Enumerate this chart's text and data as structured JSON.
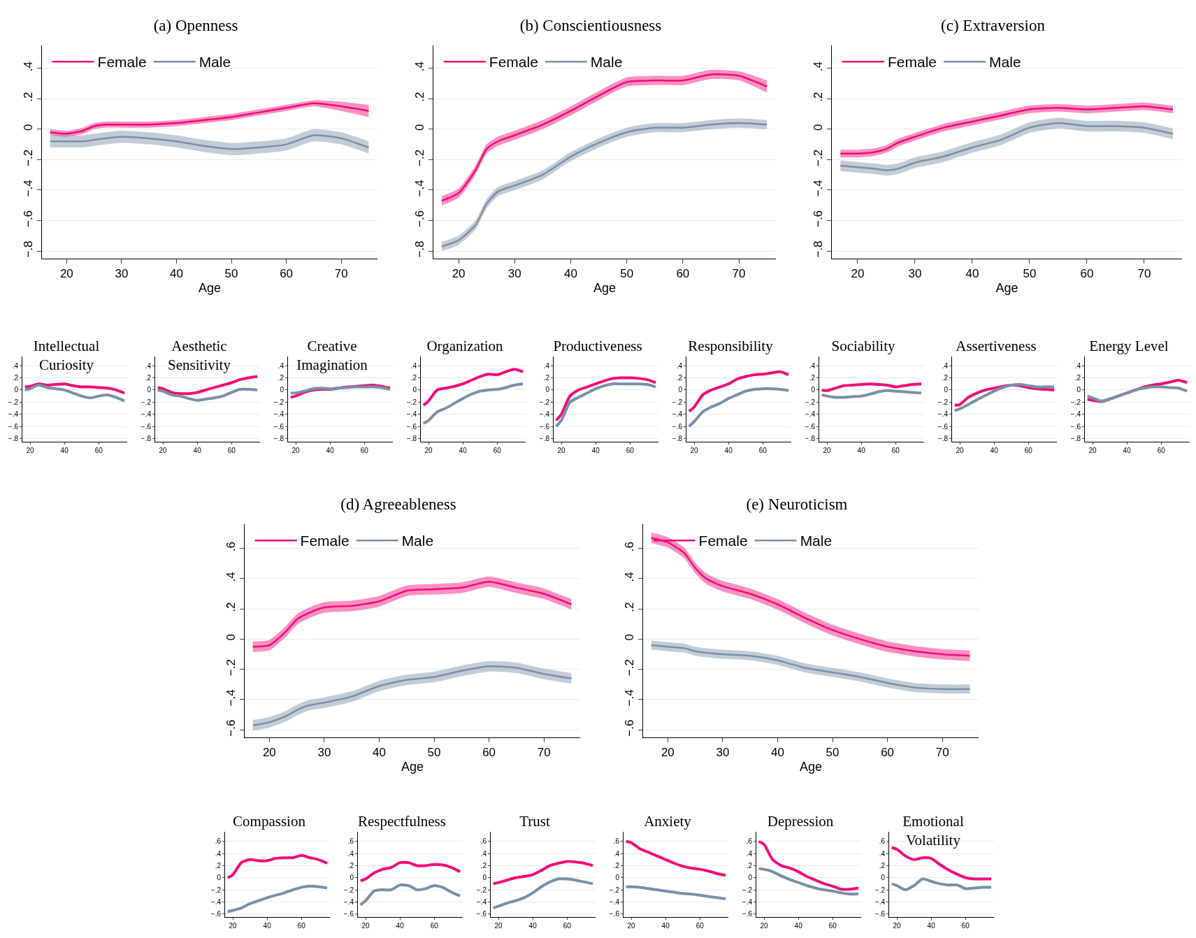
{
  "chart_data": [
    {
      "type": "line",
      "title": "(a) Openness",
      "xlabel": "Age",
      "x": [
        17,
        20,
        23,
        25,
        27,
        30,
        35,
        40,
        45,
        50,
        55,
        60,
        65,
        70,
        75
      ],
      "xlim": [
        15.5,
        76.6
      ],
      "xticks": [
        20,
        30,
        40,
        50,
        60,
        70
      ],
      "ylim": [
        -0.85,
        0.55
      ],
      "yticks": [
        {
          "value": -0.8,
          "label": "−.8"
        },
        {
          "value": -0.6,
          "label": "−.6"
        },
        {
          "value": -0.4,
          "label": "−.4"
        },
        {
          "value": -0.2,
          "label": "−.2"
        },
        {
          "value": 0,
          "label": "0"
        },
        {
          "value": 0.2,
          "label": ".2"
        },
        {
          "value": 0.4,
          "label": ".4"
        }
      ],
      "grid": "y",
      "legend": "top",
      "series": [
        {
          "name": "Female",
          "color": "#f50a78",
          "values": [
            -0.02,
            -0.03,
            -0.01,
            0.02,
            0.03,
            0.03,
            0.03,
            0.04,
            0.06,
            0.08,
            0.11,
            0.14,
            0.17,
            0.15,
            0.12
          ],
          "lower": [
            -0.04,
            -0.05,
            -0.03,
            0.0,
            0.01,
            0.01,
            0.01,
            0.02,
            0.04,
            0.06,
            0.09,
            0.12,
            0.15,
            0.12,
            0.08
          ],
          "upper": [
            0.0,
            -0.01,
            0.01,
            0.04,
            0.05,
            0.05,
            0.05,
            0.06,
            0.08,
            0.1,
            0.13,
            0.16,
            0.19,
            0.18,
            0.16
          ]
        },
        {
          "name": "Male",
          "color": "#7890a8",
          "values": [
            -0.08,
            -0.08,
            -0.08,
            -0.07,
            -0.06,
            -0.05,
            -0.06,
            -0.08,
            -0.11,
            -0.13,
            -0.12,
            -0.1,
            -0.04,
            -0.06,
            -0.12
          ],
          "lower": [
            -0.12,
            -0.12,
            -0.12,
            -0.11,
            -0.1,
            -0.09,
            -0.1,
            -0.12,
            -0.15,
            -0.17,
            -0.16,
            -0.14,
            -0.08,
            -0.1,
            -0.16
          ],
          "upper": [
            -0.04,
            -0.04,
            -0.04,
            -0.03,
            -0.02,
            -0.01,
            -0.02,
            -0.04,
            -0.07,
            -0.09,
            -0.08,
            -0.06,
            0.0,
            -0.02,
            -0.08
          ]
        }
      ]
    },
    {
      "type": "line",
      "title": "(b) Conscientiousness",
      "xlabel": "Age",
      "x": [
        17,
        20,
        23,
        25,
        27,
        30,
        35,
        40,
        45,
        50,
        55,
        60,
        65,
        70,
        75
      ],
      "xlim": [
        15.5,
        76.6
      ],
      "xticks": [
        20,
        30,
        40,
        50,
        60,
        70
      ],
      "ylim": [
        -0.85,
        0.55
      ],
      "yticks": [
        {
          "value": -0.8,
          "label": "−.8"
        },
        {
          "value": -0.6,
          "label": "−.6"
        },
        {
          "value": -0.4,
          "label": "−.4"
        },
        {
          "value": -0.2,
          "label": "−.2"
        },
        {
          "value": 0,
          "label": "0"
        },
        {
          "value": 0.2,
          "label": ".2"
        },
        {
          "value": 0.4,
          "label": ".4"
        }
      ],
      "grid": "y",
      "legend": "top",
      "series": [
        {
          "name": "Female",
          "color": "#f50a78",
          "values": [
            -0.47,
            -0.42,
            -0.27,
            -0.13,
            -0.08,
            -0.04,
            0.03,
            0.12,
            0.22,
            0.31,
            0.32,
            0.32,
            0.36,
            0.35,
            0.28
          ],
          "lower": [
            -0.5,
            -0.45,
            -0.3,
            -0.16,
            -0.11,
            -0.07,
            0.0,
            0.09,
            0.19,
            0.28,
            0.29,
            0.29,
            0.33,
            0.32,
            0.24
          ],
          "upper": [
            -0.44,
            -0.39,
            -0.24,
            -0.1,
            -0.05,
            -0.01,
            0.06,
            0.15,
            0.25,
            0.34,
            0.35,
            0.35,
            0.39,
            0.38,
            0.32
          ]
        },
        {
          "name": "Male",
          "color": "#7890a8",
          "values": [
            -0.77,
            -0.73,
            -0.63,
            -0.49,
            -0.41,
            -0.37,
            -0.3,
            -0.18,
            -0.09,
            -0.02,
            0.01,
            0.01,
            0.03,
            0.04,
            0.03
          ],
          "lower": [
            -0.8,
            -0.76,
            -0.66,
            -0.52,
            -0.44,
            -0.4,
            -0.33,
            -0.21,
            -0.12,
            -0.05,
            -0.02,
            -0.02,
            0.0,
            0.01,
            0.0
          ],
          "upper": [
            -0.74,
            -0.7,
            -0.6,
            -0.46,
            -0.38,
            -0.34,
            -0.27,
            -0.15,
            -0.06,
            0.01,
            0.04,
            0.04,
            0.06,
            0.07,
            0.06
          ]
        }
      ]
    },
    {
      "type": "line",
      "title": "(c) Extraversion",
      "xlabel": "Age",
      "x": [
        17,
        20,
        23,
        25,
        27,
        30,
        35,
        40,
        45,
        50,
        55,
        60,
        65,
        70,
        75
      ],
      "xlim": [
        15.5,
        76.6
      ],
      "xticks": [
        20,
        30,
        40,
        50,
        60,
        70
      ],
      "ylim": [
        -0.85,
        0.55
      ],
      "yticks": [
        {
          "value": -0.8,
          "label": "−.8"
        },
        {
          "value": -0.6,
          "label": "−.6"
        },
        {
          "value": -0.4,
          "label": "−.4"
        },
        {
          "value": -0.2,
          "label": "−.2"
        },
        {
          "value": 0,
          "label": "0"
        },
        {
          "value": 0.2,
          "label": ".2"
        },
        {
          "value": 0.4,
          "label": ".4"
        }
      ],
      "grid": "y",
      "legend": "top",
      "series": [
        {
          "name": "Female",
          "color": "#f50a78",
          "values": [
            -0.16,
            -0.16,
            -0.15,
            -0.13,
            -0.09,
            -0.05,
            0.01,
            0.05,
            0.09,
            0.13,
            0.14,
            0.13,
            0.14,
            0.15,
            0.13
          ],
          "lower": [
            -0.185,
            -0.185,
            -0.175,
            -0.155,
            -0.115,
            -0.075,
            -0.015,
            0.025,
            0.065,
            0.105,
            0.115,
            0.105,
            0.115,
            0.125,
            0.105
          ],
          "upper": [
            -0.135,
            -0.135,
            -0.125,
            -0.105,
            -0.065,
            -0.025,
            0.035,
            0.075,
            0.115,
            0.155,
            0.165,
            0.155,
            0.165,
            0.175,
            0.155
          ]
        },
        {
          "name": "Male",
          "color": "#7890a8",
          "values": [
            -0.24,
            -0.25,
            -0.26,
            -0.27,
            -0.26,
            -0.22,
            -0.18,
            -0.12,
            -0.07,
            0.01,
            0.04,
            0.02,
            0.02,
            0.01,
            -0.03
          ],
          "lower": [
            -0.275,
            -0.285,
            -0.295,
            -0.305,
            -0.295,
            -0.255,
            -0.215,
            -0.155,
            -0.105,
            -0.025,
            0.005,
            -0.015,
            -0.015,
            -0.025,
            -0.065
          ],
          "upper": [
            -0.205,
            -0.215,
            -0.225,
            -0.235,
            -0.225,
            -0.185,
            -0.145,
            -0.085,
            -0.035,
            0.045,
            0.075,
            0.055,
            0.055,
            0.045,
            0.005
          ]
        }
      ]
    },
    {
      "type": "line",
      "title": "Intellectual\nCuriosity",
      "x": [
        17,
        20,
        25,
        30,
        35,
        40,
        45,
        50,
        55,
        60,
        65,
        70,
        75
      ],
      "xlim": [
        15.5,
        76.6
      ],
      "xticks": [
        20,
        40,
        60
      ],
      "ylim": [
        -0.85,
        0.55
      ],
      "yticks": [
        {
          "value": -0.8,
          "label": "−.8"
        },
        {
          "value": -0.6,
          "label": "−.6"
        },
        {
          "value": -0.4,
          "label": "−.4"
        },
        {
          "value": -0.2,
          "label": "−.2"
        },
        {
          "value": 0,
          "label": "0"
        },
        {
          "value": 0.2,
          "label": ".2"
        },
        {
          "value": 0.4,
          "label": ".4"
        }
      ],
      "grid": "y",
      "series": [
        {
          "color": "#f50a78",
          "values": [
            0.05,
            0.06,
            0.1,
            0.08,
            0.09,
            0.1,
            0.07,
            0.05,
            0.05,
            0.04,
            0.03,
            0.0,
            -0.05
          ]
        },
        {
          "color": "#7890a8",
          "values": [
            0.0,
            0.02,
            0.08,
            0.04,
            0.02,
            0.0,
            -0.05,
            -0.1,
            -0.13,
            -0.1,
            -0.08,
            -0.12,
            -0.18
          ]
        }
      ]
    },
    {
      "type": "line",
      "title": "Aesthetic\nSensitivity",
      "x": [
        17,
        20,
        25,
        30,
        35,
        40,
        45,
        50,
        55,
        60,
        65,
        70,
        75
      ],
      "xlim": [
        15.5,
        76.6
      ],
      "xticks": [
        20,
        40,
        60
      ],
      "ylim": [
        -0.85,
        0.55
      ],
      "yticks": [
        {
          "value": -0.8,
          "label": "−.8"
        },
        {
          "value": -0.6,
          "label": "−.6"
        },
        {
          "value": -0.4,
          "label": "−.4"
        },
        {
          "value": -0.2,
          "label": "−.2"
        },
        {
          "value": 0,
          "label": "0"
        },
        {
          "value": 0.2,
          "label": ".2"
        },
        {
          "value": 0.4,
          "label": ".4"
        }
      ],
      "grid": "y",
      "series": [
        {
          "color": "#f50a78",
          "values": [
            0.04,
            0.02,
            -0.04,
            -0.06,
            -0.06,
            -0.04,
            0.0,
            0.04,
            0.08,
            0.12,
            0.17,
            0.2,
            0.22
          ]
        },
        {
          "color": "#7890a8",
          "values": [
            0.0,
            -0.02,
            -0.08,
            -0.1,
            -0.14,
            -0.17,
            -0.15,
            -0.13,
            -0.1,
            -0.04,
            0.01,
            0.01,
            0.0
          ]
        }
      ]
    },
    {
      "type": "line",
      "title": "Creative\nImagination",
      "x": [
        17,
        20,
        25,
        30,
        35,
        40,
        45,
        50,
        55,
        60,
        65,
        70,
        75
      ],
      "xlim": [
        15.5,
        76.6
      ],
      "xticks": [
        20,
        40,
        60
      ],
      "ylim": [
        -0.85,
        0.55
      ],
      "yticks": [
        {
          "value": -0.8,
          "label": "−.8"
        },
        {
          "value": -0.6,
          "label": "−.6"
        },
        {
          "value": -0.4,
          "label": "−.4"
        },
        {
          "value": -0.2,
          "label": "−.2"
        },
        {
          "value": 0,
          "label": "0"
        },
        {
          "value": 0.2,
          "label": ".2"
        },
        {
          "value": 0.4,
          "label": ".4"
        }
      ],
      "grid": "y",
      "series": [
        {
          "color": "#f50a78",
          "values": [
            -0.12,
            -0.1,
            -0.04,
            0.0,
            0.01,
            0.01,
            0.03,
            0.05,
            0.06,
            0.07,
            0.08,
            0.06,
            0.03
          ]
        },
        {
          "color": "#7890a8",
          "values": [
            -0.05,
            -0.05,
            -0.02,
            0.02,
            0.03,
            0.02,
            0.03,
            0.04,
            0.05,
            0.05,
            0.05,
            0.04,
            0.01
          ]
        }
      ]
    },
    {
      "type": "line",
      "title": "Organization",
      "x": [
        17,
        20,
        25,
        30,
        35,
        40,
        45,
        50,
        55,
        60,
        65,
        70,
        75
      ],
      "xlim": [
        15.5,
        76.6
      ],
      "xticks": [
        20,
        40,
        60
      ],
      "ylim": [
        -0.85,
        0.55
      ],
      "yticks": [
        {
          "value": -0.8,
          "label": "−.8"
        },
        {
          "value": -0.6,
          "label": "−.6"
        },
        {
          "value": -0.4,
          "label": "−.4"
        },
        {
          "value": -0.2,
          "label": "−.2"
        },
        {
          "value": 0,
          "label": "0"
        },
        {
          "value": 0.2,
          "label": ".2"
        },
        {
          "value": 0.4,
          "label": ".4"
        }
      ],
      "grid": "y",
      "series": [
        {
          "color": "#f50a78",
          "values": [
            -0.25,
            -0.18,
            0.0,
            0.03,
            0.06,
            0.1,
            0.16,
            0.22,
            0.26,
            0.25,
            0.3,
            0.34,
            0.3
          ]
        },
        {
          "color": "#7890a8",
          "values": [
            -0.55,
            -0.5,
            -0.36,
            -0.3,
            -0.22,
            -0.14,
            -0.07,
            -0.02,
            0.0,
            0.01,
            0.04,
            0.08,
            0.1
          ]
        }
      ]
    },
    {
      "type": "line",
      "title": "Productiveness",
      "x": [
        17,
        20,
        25,
        30,
        35,
        40,
        45,
        50,
        55,
        60,
        65,
        70,
        75
      ],
      "xlim": [
        15.5,
        76.6
      ],
      "xticks": [
        20,
        40,
        60
      ],
      "ylim": [
        -0.85,
        0.55
      ],
      "yticks": [
        {
          "value": -0.8,
          "label": "−.8"
        },
        {
          "value": -0.6,
          "label": "−.6"
        },
        {
          "value": -0.4,
          "label": "−.4"
        },
        {
          "value": -0.2,
          "label": "−.2"
        },
        {
          "value": 0,
          "label": "0"
        },
        {
          "value": 0.2,
          "label": ".2"
        },
        {
          "value": 0.4,
          "label": ".4"
        }
      ],
      "grid": "y",
      "series": [
        {
          "color": "#f50a78",
          "values": [
            -0.5,
            -0.4,
            -0.1,
            0.0,
            0.05,
            0.1,
            0.15,
            0.19,
            0.2,
            0.2,
            0.19,
            0.17,
            0.12
          ]
        },
        {
          "color": "#7890a8",
          "values": [
            -0.6,
            -0.5,
            -0.2,
            -0.12,
            -0.05,
            0.02,
            0.07,
            0.1,
            0.1,
            0.1,
            0.1,
            0.09,
            0.05
          ]
        }
      ]
    },
    {
      "type": "line",
      "title": "Responsibility",
      "x": [
        17,
        20,
        25,
        30,
        35,
        40,
        45,
        50,
        55,
        60,
        65,
        70,
        75
      ],
      "xlim": [
        15.5,
        76.6
      ],
      "xticks": [
        20,
        40,
        60
      ],
      "ylim": [
        -0.85,
        0.55
      ],
      "yticks": [
        {
          "value": -0.8,
          "label": "−.8"
        },
        {
          "value": -0.6,
          "label": "−.6"
        },
        {
          "value": -0.4,
          "label": "−.4"
        },
        {
          "value": -0.2,
          "label": "−.2"
        },
        {
          "value": 0,
          "label": "0"
        },
        {
          "value": 0.2,
          "label": ".2"
        },
        {
          "value": 0.4,
          "label": ".4"
        }
      ],
      "grid": "y",
      "series": [
        {
          "color": "#f50a78",
          "values": [
            -0.35,
            -0.28,
            -0.08,
            0.0,
            0.05,
            0.1,
            0.18,
            0.22,
            0.25,
            0.26,
            0.28,
            0.3,
            0.25
          ]
        },
        {
          "color": "#7890a8",
          "values": [
            -0.6,
            -0.52,
            -0.36,
            -0.28,
            -0.22,
            -0.14,
            -0.08,
            -0.02,
            0.01,
            0.02,
            0.02,
            0.01,
            -0.01
          ]
        }
      ]
    },
    {
      "type": "line",
      "title": "Sociability",
      "x": [
        17,
        20,
        25,
        30,
        35,
        40,
        45,
        50,
        55,
        60,
        65,
        70,
        75
      ],
      "xlim": [
        15.5,
        76.6
      ],
      "xticks": [
        20,
        40,
        60
      ],
      "ylim": [
        -0.85,
        0.55
      ],
      "yticks": [
        {
          "value": -0.8,
          "label": "−.8"
        },
        {
          "value": -0.6,
          "label": "−.6"
        },
        {
          "value": -0.4,
          "label": "−.4"
        },
        {
          "value": -0.2,
          "label": "−.2"
        },
        {
          "value": 0,
          "label": "0"
        },
        {
          "value": 0.2,
          "label": ".2"
        },
        {
          "value": 0.4,
          "label": ".4"
        }
      ],
      "grid": "y",
      "series": [
        {
          "color": "#f50a78",
          "values": [
            0.0,
            -0.01,
            0.03,
            0.07,
            0.08,
            0.09,
            0.1,
            0.09,
            0.08,
            0.05,
            0.07,
            0.09,
            0.1
          ]
        },
        {
          "color": "#7890a8",
          "values": [
            -0.08,
            -0.1,
            -0.12,
            -0.12,
            -0.11,
            -0.1,
            -0.07,
            -0.03,
            -0.01,
            -0.02,
            -0.03,
            -0.04,
            -0.05
          ]
        }
      ]
    },
    {
      "type": "line",
      "title": "Assertiveness",
      "x": [
        17,
        20,
        25,
        30,
        35,
        40,
        45,
        50,
        55,
        60,
        65,
        70,
        75
      ],
      "xlim": [
        15.5,
        76.6
      ],
      "xticks": [
        20,
        40,
        60
      ],
      "ylim": [
        -0.85,
        0.55
      ],
      "yticks": [
        {
          "value": -0.8,
          "label": "−.8"
        },
        {
          "value": -0.6,
          "label": "−.6"
        },
        {
          "value": -0.4,
          "label": "−.4"
        },
        {
          "value": -0.2,
          "label": "−.2"
        },
        {
          "value": 0,
          "label": "0"
        },
        {
          "value": 0.2,
          "label": ".2"
        },
        {
          "value": 0.4,
          "label": ".4"
        }
      ],
      "grid": "y",
      "series": [
        {
          "color": "#f50a78",
          "values": [
            -0.25,
            -0.24,
            -0.12,
            -0.05,
            0.0,
            0.03,
            0.06,
            0.08,
            0.07,
            0.04,
            0.02,
            0.01,
            0.0
          ]
        },
        {
          "color": "#7890a8",
          "values": [
            -0.34,
            -0.31,
            -0.24,
            -0.16,
            -0.09,
            -0.02,
            0.04,
            0.08,
            0.09,
            0.07,
            0.05,
            0.05,
            0.05
          ]
        }
      ]
    },
    {
      "type": "line",
      "title": "Energy Level",
      "x": [
        17,
        20,
        25,
        30,
        35,
        40,
        45,
        50,
        55,
        60,
        65,
        70,
        75
      ],
      "xlim": [
        15.5,
        76.6
      ],
      "xticks": [
        20,
        40,
        60
      ],
      "ylim": [
        -0.85,
        0.55
      ],
      "yticks": [
        {
          "value": -0.8,
          "label": "−.8"
        },
        {
          "value": -0.6,
          "label": "−.6"
        },
        {
          "value": -0.4,
          "label": "−.4"
        },
        {
          "value": -0.2,
          "label": "−.2"
        },
        {
          "value": 0,
          "label": "0"
        },
        {
          "value": 0.2,
          "label": ".2"
        },
        {
          "value": 0.4,
          "label": ".4"
        }
      ],
      "grid": "y",
      "series": [
        {
          "color": "#f50a78",
          "values": [
            -0.15,
            -0.17,
            -0.19,
            -0.15,
            -0.1,
            -0.05,
            0.0,
            0.05,
            0.08,
            0.1,
            0.13,
            0.16,
            0.12
          ]
        },
        {
          "color": "#7890a8",
          "values": [
            -0.1,
            -0.13,
            -0.18,
            -0.15,
            -0.1,
            -0.05,
            0.0,
            0.03,
            0.05,
            0.05,
            0.04,
            0.03,
            -0.02
          ]
        }
      ]
    },
    {
      "type": "line",
      "title": "(d) Agreeableness",
      "xlabel": "Age",
      "x": [
        17,
        20,
        23,
        25,
        27,
        30,
        35,
        40,
        45,
        50,
        55,
        60,
        65,
        70,
        75
      ],
      "xlim": [
        15.5,
        76.6
      ],
      "xticks": [
        20,
        30,
        40,
        50,
        60,
        70
      ],
      "ylim": [
        -0.65,
        0.76
      ],
      "yticks": [
        {
          "value": -0.6,
          "label": "−.6"
        },
        {
          "value": -0.4,
          "label": "−.4"
        },
        {
          "value": -0.2,
          "label": "−.2"
        },
        {
          "value": 0,
          "label": "0"
        },
        {
          "value": 0.2,
          "label": ".2"
        },
        {
          "value": 0.4,
          "label": ".4"
        },
        {
          "value": 0.6,
          "label": ".6"
        }
      ],
      "grid": "y",
      "legend": "top",
      "series": [
        {
          "name": "Female",
          "color": "#f50a78",
          "values": [
            -0.05,
            -0.04,
            0.05,
            0.13,
            0.17,
            0.21,
            0.22,
            0.25,
            0.32,
            0.33,
            0.34,
            0.38,
            0.34,
            0.3,
            0.23
          ],
          "lower": [
            -0.085,
            -0.075,
            0.015,
            0.095,
            0.135,
            0.175,
            0.185,
            0.215,
            0.285,
            0.295,
            0.305,
            0.345,
            0.305,
            0.265,
            0.195
          ],
          "upper": [
            -0.015,
            -0.005,
            0.085,
            0.165,
            0.205,
            0.245,
            0.255,
            0.285,
            0.355,
            0.365,
            0.375,
            0.415,
            0.375,
            0.335,
            0.265
          ]
        },
        {
          "name": "Male",
          "color": "#7890a8",
          "values": [
            -0.57,
            -0.55,
            -0.51,
            -0.47,
            -0.44,
            -0.42,
            -0.38,
            -0.31,
            -0.27,
            -0.25,
            -0.21,
            -0.18,
            -0.19,
            -0.23,
            -0.26
          ],
          "lower": [
            -0.605,
            -0.585,
            -0.545,
            -0.505,
            -0.475,
            -0.455,
            -0.415,
            -0.345,
            -0.305,
            -0.285,
            -0.245,
            -0.215,
            -0.225,
            -0.265,
            -0.295
          ],
          "upper": [
            -0.535,
            -0.515,
            -0.475,
            -0.435,
            -0.405,
            -0.385,
            -0.345,
            -0.275,
            -0.235,
            -0.215,
            -0.175,
            -0.145,
            -0.155,
            -0.195,
            -0.225
          ]
        }
      ]
    },
    {
      "type": "line",
      "title": "(e) Neuroticism",
      "xlabel": "Age",
      "x": [
        17,
        20,
        23,
        25,
        27,
        30,
        35,
        40,
        45,
        50,
        55,
        60,
        65,
        70,
        75
      ],
      "xlim": [
        15.5,
        76.6
      ],
      "xticks": [
        20,
        30,
        40,
        50,
        60,
        70
      ],
      "ylim": [
        -0.65,
        0.76
      ],
      "yticks": [
        {
          "value": -0.6,
          "label": "−.6"
        },
        {
          "value": -0.4,
          "label": "−.4"
        },
        {
          "value": -0.2,
          "label": "−.2"
        },
        {
          "value": 0,
          "label": "0"
        },
        {
          "value": 0.2,
          "label": ".2"
        },
        {
          "value": 0.4,
          "label": ".4"
        },
        {
          "value": 0.6,
          "label": ".6"
        }
      ],
      "grid": "y",
      "legend": "top",
      "series": [
        {
          "name": "Female",
          "color": "#f50a78",
          "values": [
            0.67,
            0.64,
            0.57,
            0.47,
            0.4,
            0.35,
            0.3,
            0.23,
            0.14,
            0.06,
            0.0,
            -0.05,
            -0.08,
            -0.1,
            -0.11
          ],
          "lower": [
            0.635,
            0.605,
            0.535,
            0.435,
            0.365,
            0.315,
            0.265,
            0.195,
            0.105,
            0.025,
            -0.035,
            -0.085,
            -0.115,
            -0.135,
            -0.145
          ],
          "upper": [
            0.705,
            0.675,
            0.605,
            0.505,
            0.435,
            0.385,
            0.335,
            0.265,
            0.175,
            0.095,
            0.035,
            -0.015,
            -0.045,
            -0.065,
            -0.075
          ]
        },
        {
          "name": "Male",
          "color": "#7890a8",
          "values": [
            -0.04,
            -0.05,
            -0.06,
            -0.08,
            -0.09,
            -0.1,
            -0.11,
            -0.14,
            -0.19,
            -0.22,
            -0.25,
            -0.29,
            -0.32,
            -0.33,
            -0.33
          ],
          "lower": [
            -0.07,
            -0.08,
            -0.09,
            -0.11,
            -0.12,
            -0.13,
            -0.14,
            -0.17,
            -0.22,
            -0.25,
            -0.28,
            -0.32,
            -0.35,
            -0.36,
            -0.36
          ],
          "upper": [
            -0.01,
            -0.02,
            -0.03,
            -0.05,
            -0.06,
            -0.07,
            -0.08,
            -0.11,
            -0.16,
            -0.19,
            -0.22,
            -0.26,
            -0.29,
            -0.3,
            -0.3
          ]
        }
      ]
    },
    {
      "type": "line",
      "title": "Compassion",
      "x": [
        17,
        20,
        25,
        30,
        35,
        40,
        45,
        50,
        55,
        60,
        65,
        70,
        75
      ],
      "xlim": [
        15.5,
        76.6
      ],
      "xticks": [
        20,
        40,
        60
      ],
      "ylim": [
        -0.65,
        0.76
      ],
      "yticks": [
        {
          "value": -0.6,
          "label": "−.6"
        },
        {
          "value": -0.4,
          "label": "−.4"
        },
        {
          "value": -0.2,
          "label": "−.2"
        },
        {
          "value": 0,
          "label": "0"
        },
        {
          "value": 0.2,
          "label": ".2"
        },
        {
          "value": 0.4,
          "label": ".4"
        },
        {
          "value": 0.6,
          "label": ".6"
        }
      ],
      "grid": "y",
      "series": [
        {
          "color": "#f50a78",
          "values": [
            0.0,
            0.05,
            0.25,
            0.3,
            0.28,
            0.28,
            0.32,
            0.33,
            0.33,
            0.37,
            0.33,
            0.3,
            0.24
          ]
        },
        {
          "color": "#7890a8",
          "values": [
            -0.56,
            -0.54,
            -0.5,
            -0.43,
            -0.38,
            -0.33,
            -0.29,
            -0.25,
            -0.2,
            -0.16,
            -0.14,
            -0.15,
            -0.17
          ]
        }
      ]
    },
    {
      "type": "line",
      "title": "Respectfulness",
      "x": [
        17,
        20,
        25,
        30,
        35,
        40,
        45,
        50,
        55,
        60,
        65,
        70,
        75
      ],
      "xlim": [
        15.5,
        76.6
      ],
      "xticks": [
        20,
        40,
        60
      ],
      "ylim": [
        -0.65,
        0.76
      ],
      "yticks": [
        {
          "value": -0.6,
          "label": "−.6"
        },
        {
          "value": -0.4,
          "label": "−.4"
        },
        {
          "value": -0.2,
          "label": "−.2"
        },
        {
          "value": 0,
          "label": "0"
        },
        {
          "value": 0.2,
          "label": ".2"
        },
        {
          "value": 0.4,
          "label": ".4"
        },
        {
          "value": 0.6,
          "label": ".6"
        }
      ],
      "grid": "y",
      "series": [
        {
          "color": "#f50a78",
          "values": [
            -0.05,
            -0.02,
            0.08,
            0.14,
            0.17,
            0.25,
            0.25,
            0.2,
            0.2,
            0.22,
            0.21,
            0.17,
            0.1
          ]
        },
        {
          "color": "#7890a8",
          "values": [
            -0.45,
            -0.38,
            -0.22,
            -0.2,
            -0.2,
            -0.12,
            -0.13,
            -0.2,
            -0.18,
            -0.13,
            -0.16,
            -0.24,
            -0.3
          ]
        }
      ]
    },
    {
      "type": "line",
      "title": "Trust",
      "x": [
        17,
        20,
        25,
        30,
        35,
        40,
        45,
        50,
        55,
        60,
        65,
        70,
        75
      ],
      "xlim": [
        15.5,
        76.6
      ],
      "xticks": [
        20,
        40,
        60
      ],
      "ylim": [
        -0.65,
        0.76
      ],
      "yticks": [
        {
          "value": -0.6,
          "label": "−.6"
        },
        {
          "value": -0.4,
          "label": "−.4"
        },
        {
          "value": -0.2,
          "label": "−.2"
        },
        {
          "value": 0,
          "label": "0"
        },
        {
          "value": 0.2,
          "label": ".2"
        },
        {
          "value": 0.4,
          "label": ".4"
        },
        {
          "value": 0.6,
          "label": ".6"
        }
      ],
      "grid": "y",
      "series": [
        {
          "color": "#f50a78",
          "values": [
            -0.1,
            -0.08,
            -0.04,
            0.0,
            0.02,
            0.05,
            0.12,
            0.2,
            0.24,
            0.27,
            0.26,
            0.24,
            0.2
          ]
        },
        {
          "color": "#7890a8",
          "values": [
            -0.5,
            -0.47,
            -0.42,
            -0.38,
            -0.33,
            -0.25,
            -0.15,
            -0.07,
            -0.02,
            -0.02,
            -0.04,
            -0.07,
            -0.1
          ]
        }
      ]
    },
    {
      "type": "line",
      "title": "Anxiety",
      "x": [
        17,
        20,
        25,
        30,
        35,
        40,
        45,
        50,
        55,
        60,
        65,
        70,
        75
      ],
      "xlim": [
        15.5,
        76.6
      ],
      "xticks": [
        20,
        40,
        60
      ],
      "ylim": [
        -0.65,
        0.76
      ],
      "yticks": [
        {
          "value": -0.6,
          "label": "−.6"
        },
        {
          "value": -0.4,
          "label": "−.4"
        },
        {
          "value": -0.2,
          "label": "−.2"
        },
        {
          "value": 0,
          "label": "0"
        },
        {
          "value": 0.2,
          "label": ".2"
        },
        {
          "value": 0.4,
          "label": ".4"
        },
        {
          "value": 0.6,
          "label": ".6"
        }
      ],
      "grid": "y",
      "series": [
        {
          "color": "#f50a78",
          "values": [
            0.6,
            0.58,
            0.48,
            0.42,
            0.36,
            0.3,
            0.24,
            0.19,
            0.16,
            0.14,
            0.11,
            0.07,
            0.04
          ]
        },
        {
          "color": "#7890a8",
          "values": [
            -0.15,
            -0.15,
            -0.16,
            -0.18,
            -0.2,
            -0.22,
            -0.24,
            -0.26,
            -0.27,
            -0.29,
            -0.31,
            -0.33,
            -0.35
          ]
        }
      ]
    },
    {
      "type": "line",
      "title": "Depression",
      "x": [
        17,
        20,
        25,
        30,
        35,
        40,
        45,
        50,
        55,
        60,
        65,
        70,
        75
      ],
      "xlim": [
        15.5,
        76.6
      ],
      "xticks": [
        20,
        40,
        60
      ],
      "ylim": [
        -0.65,
        0.76
      ],
      "yticks": [
        {
          "value": -0.6,
          "label": "−.6"
        },
        {
          "value": -0.4,
          "label": "−.4"
        },
        {
          "value": -0.2,
          "label": "−.2"
        },
        {
          "value": 0,
          "label": "0"
        },
        {
          "value": 0.2,
          "label": ".2"
        },
        {
          "value": 0.4,
          "label": ".4"
        },
        {
          "value": 0.6,
          "label": ".6"
        }
      ],
      "grid": "y",
      "series": [
        {
          "color": "#f50a78",
          "values": [
            0.6,
            0.55,
            0.3,
            0.2,
            0.16,
            0.1,
            0.02,
            -0.04,
            -0.1,
            -0.14,
            -0.19,
            -0.19,
            -0.17
          ]
        },
        {
          "color": "#7890a8",
          "values": [
            0.15,
            0.14,
            0.1,
            0.03,
            -0.03,
            -0.08,
            -0.13,
            -0.17,
            -0.2,
            -0.22,
            -0.25,
            -0.27,
            -0.27
          ]
        }
      ]
    },
    {
      "type": "line",
      "title": "Emotional\nVolatility",
      "x": [
        17,
        20,
        25,
        30,
        35,
        40,
        45,
        50,
        55,
        60,
        65,
        70,
        75
      ],
      "xlim": [
        15.5,
        76.6
      ],
      "xticks": [
        20,
        40,
        60
      ],
      "ylim": [
        -0.65,
        0.76
      ],
      "yticks": [
        {
          "value": -0.6,
          "label": "−.6"
        },
        {
          "value": -0.4,
          "label": "−.4"
        },
        {
          "value": -0.2,
          "label": "−.2"
        },
        {
          "value": 0,
          "label": "0"
        },
        {
          "value": 0.2,
          "label": ".2"
        },
        {
          "value": 0.4,
          "label": ".4"
        },
        {
          "value": 0.6,
          "label": ".6"
        }
      ],
      "grid": "y",
      "series": [
        {
          "color": "#f50a78",
          "values": [
            0.5,
            0.47,
            0.36,
            0.3,
            0.33,
            0.32,
            0.22,
            0.13,
            0.06,
            0.0,
            -0.02,
            -0.02,
            -0.02
          ]
        },
        {
          "color": "#7890a8",
          "values": [
            -0.1,
            -0.13,
            -0.2,
            -0.13,
            -0.02,
            -0.06,
            -0.1,
            -0.12,
            -0.12,
            -0.18,
            -0.17,
            -0.16,
            -0.16
          ]
        }
      ]
    }
  ]
}
